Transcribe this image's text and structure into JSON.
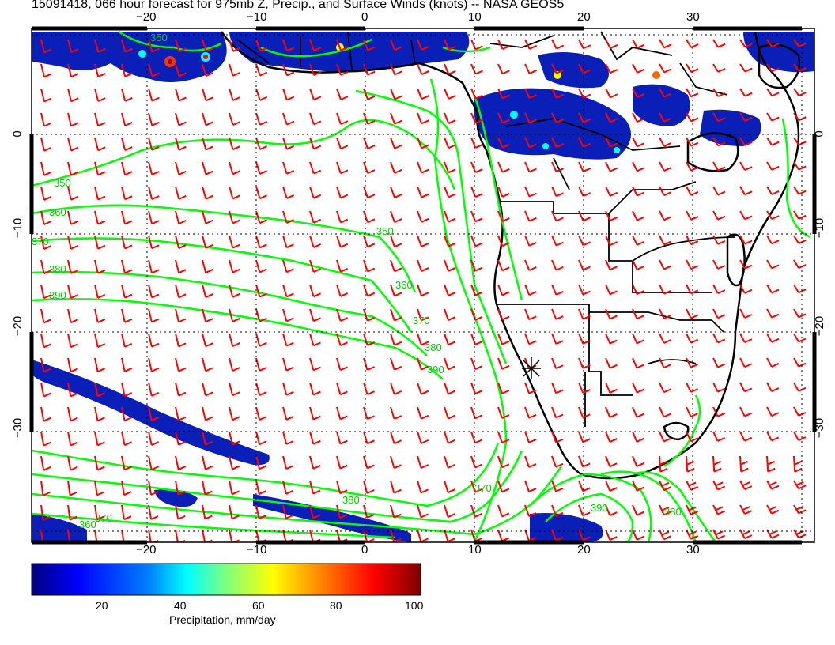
{
  "title": "15091418, 066 hour forecast for 975mb Z, Precip., and Surface Winds (knots) -- NASA GEOS5",
  "axes": {
    "lon_ticks": [
      "−20",
      "−10",
      "0",
      "10",
      "20",
      "30"
    ],
    "lat_ticks": [
      "0",
      "−10",
      "−20",
      "−30"
    ]
  },
  "contour_labels": [
    "350",
    "360",
    "370",
    "380",
    "390",
    "350",
    "360",
    "370",
    "380",
    "390",
    "370",
    "380",
    "390",
    "370",
    "380",
    "360",
    "350"
  ],
  "colorbar": {
    "title": "Precipitation, mm/day",
    "tick_labels": [
      "20",
      "40",
      "60",
      "80",
      "100"
    ],
    "range": [
      0,
      100
    ],
    "colors": [
      "#00007f",
      "#0000ff",
      "#007fff",
      "#00ffff",
      "#7fff7f",
      "#ffff00",
      "#ff7f00",
      "#ff0000",
      "#7f0000"
    ]
  },
  "colors": {
    "wind_barbs": "#ff0000",
    "contours": "#00ff00",
    "coastlines": "#000000",
    "grid": "#000000"
  },
  "marker": "station-star"
}
